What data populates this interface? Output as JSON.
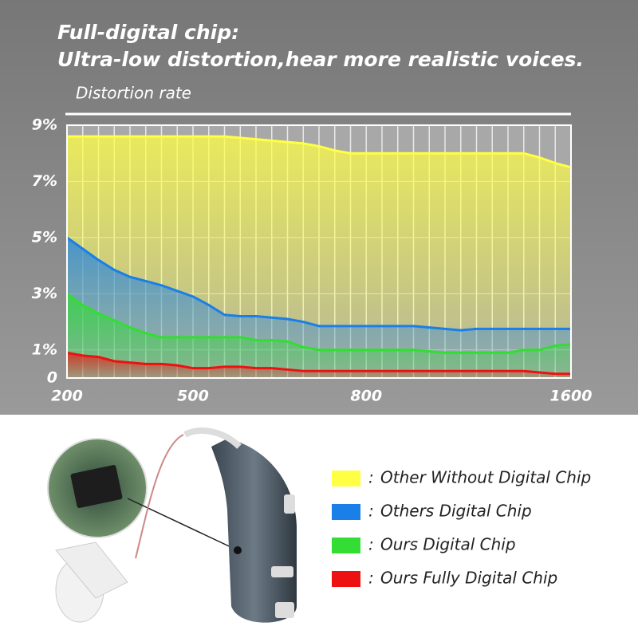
{
  "chart_data": {
    "type": "area",
    "title": "Full-digital chip:",
    "subtitle": "Ultra-low distortion,hear more realistic voices.",
    "ylabel": "Distortion rate",
    "categories": [
      "200",
      null,
      null,
      null,
      null,
      null,
      null,
      null,
      "500",
      null,
      null,
      null,
      null,
      null,
      null,
      null,
      null,
      null,
      null,
      "800",
      null,
      null,
      null,
      null,
      null,
      null,
      null,
      null,
      null,
      null,
      null,
      null,
      "1600"
    ],
    "ylim": [
      0,
      9
    ],
    "yticks": [
      0,
      {
        "value": 1,
        "label": "1%"
      },
      {
        "value": 3,
        "label": "3%"
      },
      {
        "value": 5,
        "label": "5%"
      },
      {
        "value": 7,
        "label": "7%"
      },
      {
        "value": 9,
        "label": "9%"
      }
    ],
    "grid": true,
    "legend_separator": ":",
    "series": [
      {
        "name": "Other Without Digital Chip",
        "color": "#ffff44",
        "values": [
          8.6,
          8.6,
          8.6,
          8.6,
          8.6,
          8.6,
          8.6,
          8.6,
          8.6,
          8.6,
          8.6,
          8.55,
          8.5,
          8.45,
          8.4,
          8.35,
          8.25,
          8.1,
          8.0,
          8.0,
          8.0,
          8.0,
          8.0,
          8.0,
          8.0,
          8.0,
          8.0,
          8.0,
          8.0,
          8.0,
          7.85,
          7.65,
          7.5
        ]
      },
      {
        "name": "Others Digital Chip",
        "color": "#1a7fe6",
        "values": [
          5.0,
          4.6,
          4.2,
          3.85,
          3.6,
          3.45,
          3.3,
          3.1,
          2.9,
          2.6,
          2.25,
          2.2,
          2.2,
          2.15,
          2.1,
          2.0,
          1.85,
          1.85,
          1.85,
          1.85,
          1.85,
          1.85,
          1.85,
          1.8,
          1.75,
          1.7,
          1.75,
          1.75,
          1.75,
          1.75,
          1.75,
          1.75,
          1.75
        ]
      },
      {
        "name": "Ours Digital Chip",
        "color": "#33dd33",
        "values": [
          3.0,
          2.6,
          2.3,
          2.05,
          1.8,
          1.6,
          1.45,
          1.45,
          1.45,
          1.45,
          1.45,
          1.45,
          1.35,
          1.35,
          1.3,
          1.1,
          1.0,
          1.0,
          1.0,
          1.0,
          1.0,
          1.0,
          1.0,
          0.95,
          0.9,
          0.9,
          0.9,
          0.9,
          0.9,
          1.0,
          1.0,
          1.15,
          1.2
        ]
      },
      {
        "name": "Ours Fully Digital Chip",
        "color": "#ee1111",
        "values": [
          0.9,
          0.8,
          0.75,
          0.6,
          0.55,
          0.5,
          0.5,
          0.45,
          0.35,
          0.35,
          0.4,
          0.4,
          0.35,
          0.35,
          0.3,
          0.25,
          0.25,
          0.25,
          0.25,
          0.25,
          0.25,
          0.25,
          0.25,
          0.25,
          0.25,
          0.25,
          0.25,
          0.25,
          0.25,
          0.25,
          0.2,
          0.15,
          0.15
        ]
      }
    ]
  }
}
